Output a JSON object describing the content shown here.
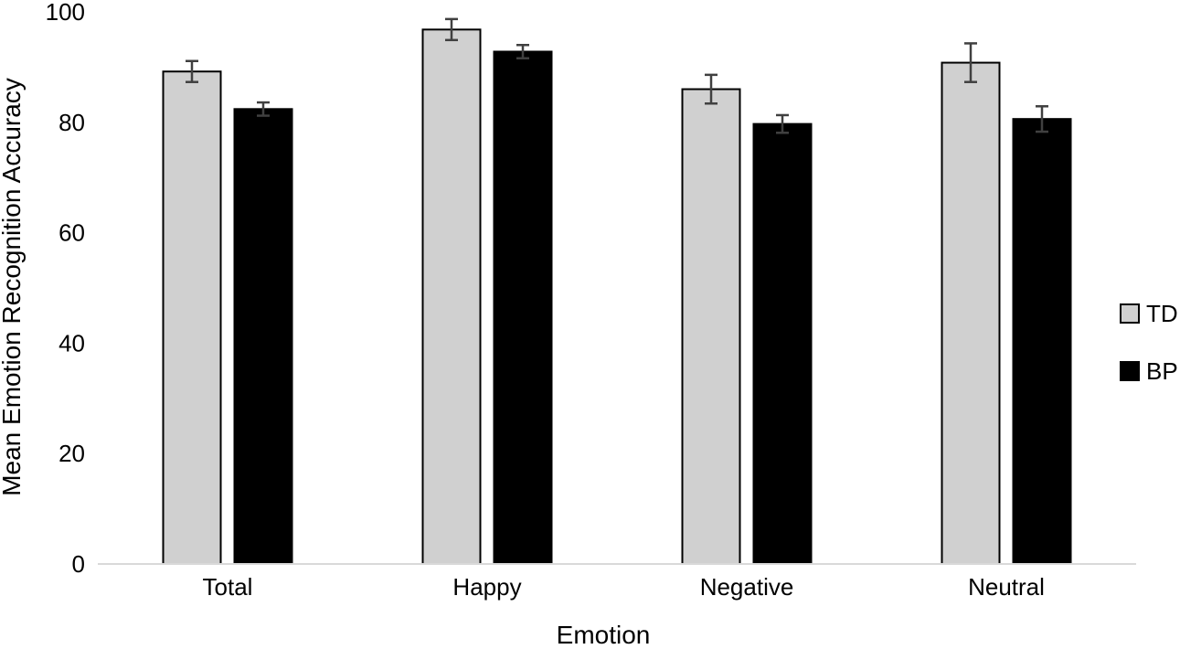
{
  "chart_data": {
    "type": "bar",
    "title": "",
    "xlabel": "Emotion",
    "ylabel": "Mean Emotion Recognition Accuracy",
    "categories": [
      "Total",
      "Happy",
      "Negative",
      "Neutral"
    ],
    "series": [
      {
        "name": "TD",
        "color": "#d0d0d0",
        "values": [
          89.2,
          96.8,
          86.0,
          90.8
        ],
        "errors": [
          1.9,
          1.9,
          2.6,
          3.5
        ]
      },
      {
        "name": "BP",
        "color": "#000000",
        "values": [
          82.4,
          92.8,
          79.7,
          80.6
        ],
        "errors": [
          1.2,
          1.2,
          1.6,
          2.3
        ]
      }
    ],
    "ylim": [
      0,
      100
    ],
    "yticks": [
      0,
      20,
      40,
      60,
      80,
      100
    ],
    "grid": false,
    "legend_position": "right",
    "error_bar_color": "#404040"
  }
}
